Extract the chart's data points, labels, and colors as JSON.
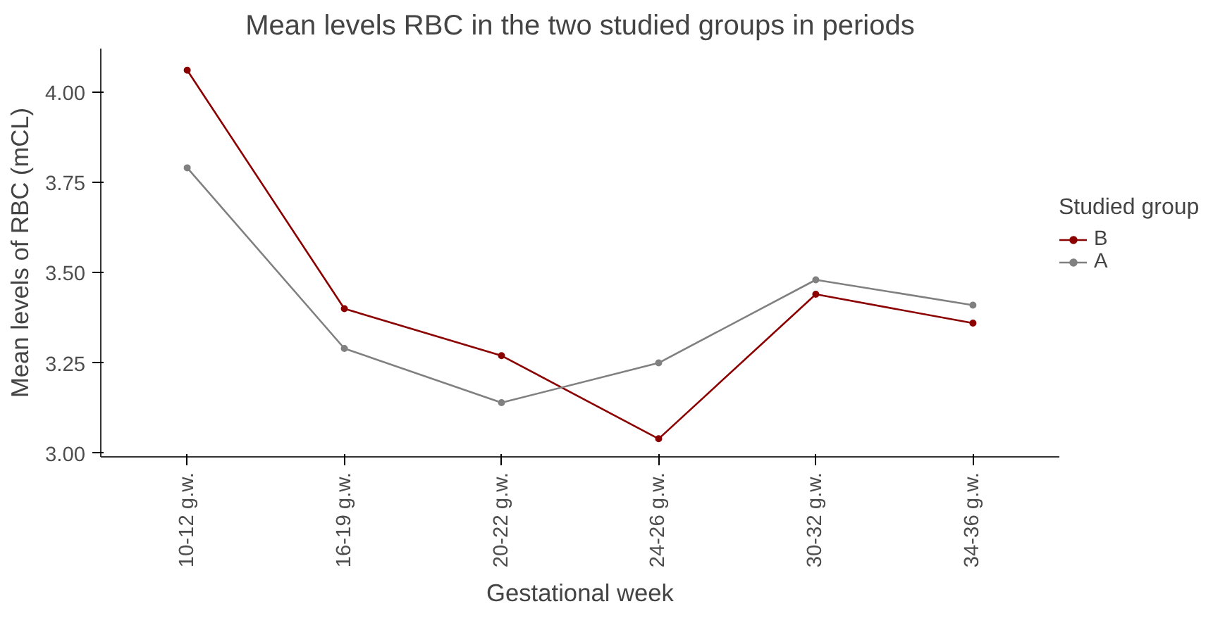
{
  "chart_data": {
    "type": "line",
    "title": "Mean levels RBC in the two studied groups in periods",
    "xlabel": "Gestational week",
    "ylabel": "Mean levels of RBC (mCL)",
    "legend_title": "Studied group",
    "categories": [
      "10-12 g.w.",
      "16-19 g.w.",
      "20-22 g.w.",
      "24-26 g.w.",
      "30-32 g.w.",
      "34-36 g.w."
    ],
    "series": [
      {
        "name": "B",
        "color": "#8b0000",
        "values": [
          4.06,
          3.4,
          3.27,
          3.04,
          3.44,
          3.36
        ]
      },
      {
        "name": "A",
        "color": "#808080",
        "values": [
          3.79,
          3.29,
          3.14,
          3.25,
          3.48,
          3.41
        ]
      }
    ],
    "ylim": [
      2.99,
      4.12
    ],
    "yticks": [
      {
        "value": 3,
        "label": "3.00"
      },
      {
        "value": 3.25,
        "label": "3.25"
      },
      {
        "value": 3.5,
        "label": "3.50"
      },
      {
        "value": 3.75,
        "label": "3.75"
      },
      {
        "value": 4,
        "label": "4.00"
      }
    ],
    "grid": false,
    "legend": "right",
    "marker": "circle",
    "line_style": "solid"
  }
}
